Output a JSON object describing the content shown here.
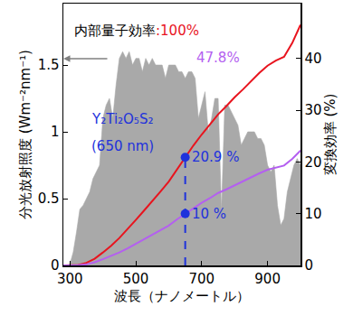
{
  "chart_data": {
    "type": "line",
    "x_label": "波長（ナノメートル）",
    "y_label": "分光放射照度 (Wm⁻²nm⁻¹)",
    "y2_label": "変換効率 (%)",
    "xlim": [
      280,
      1000
    ],
    "xticks": [
      300,
      500,
      700,
      900
    ],
    "ylim": [
      0,
      1.96
    ],
    "yticks": [
      0,
      0.5,
      1,
      1.5
    ],
    "y2lim": [
      0,
      50.6
    ],
    "y2ticks": [
      0,
      10,
      20,
      30,
      40
    ],
    "grid": false,
    "series": [
      {
        "type": "area",
        "color": "#a9a9a9",
        "x": [
          280,
          290,
          300,
          310,
          320,
          330,
          340,
          350,
          360,
          370,
          380,
          390,
          400,
          410,
          420,
          430,
          440,
          450,
          460,
          470,
          480,
          490,
          500,
          510,
          520,
          530,
          540,
          550,
          560,
          570,
          580,
          590,
          600,
          610,
          620,
          630,
          640,
          650,
          660,
          670,
          680,
          690,
          700,
          710,
          720,
          730,
          740,
          750,
          760,
          770,
          780,
          790,
          800,
          810,
          820,
          830,
          840,
          850,
          860,
          870,
          880,
          890,
          900,
          910,
          920,
          930,
          940,
          950,
          960,
          970,
          980,
          990,
          1000
        ],
        "values": [
          0,
          0,
          0.01,
          0.1,
          0.25,
          0.42,
          0.45,
          0.5,
          0.55,
          0.65,
          0.7,
          0.75,
          1.1,
          1.2,
          1.25,
          1.1,
          1.35,
          1.55,
          1.6,
          1.55,
          1.6,
          1.5,
          1.55,
          1.55,
          1.45,
          1.55,
          1.5,
          1.55,
          1.5,
          1.5,
          1.5,
          1.4,
          1.5,
          1.5,
          1.5,
          1.45,
          1.45,
          1.4,
          1.45,
          1.45,
          1.4,
          1.1,
          1.2,
          1.3,
          1.0,
          1.1,
          1.25,
          1.25,
          0.4,
          1.2,
          1.2,
          1.15,
          1.1,
          1.05,
          0.9,
          0.95,
          1.0,
          1.0,
          1.0,
          0.95,
          0.95,
          0.9,
          0.75,
          0.7,
          0.75,
          0.45,
          0.3,
          0.35,
          0.55,
          0.65,
          0.75,
          0.8,
          0.75
        ]
      },
      {
        "type": "line",
        "color": "#e8141e",
        "axis": "y2",
        "x": [
          280,
          300,
          325,
          350,
          375,
          400,
          425,
          450,
          475,
          500,
          525,
          550,
          575,
          600,
          625,
          650,
          675,
          700,
          725,
          750,
          775,
          800,
          825,
          850,
          875,
          900,
          925,
          950,
          975,
          1000
        ],
        "values": [
          0,
          0,
          0.1,
          0.5,
          1.3,
          2.5,
          3.8,
          5.3,
          7.0,
          8.8,
          10.6,
          12.4,
          14.3,
          16.2,
          18.6,
          20.9,
          23.2,
          25.3,
          27.3,
          29.2,
          30.8,
          32.5,
          34.0,
          35.6,
          37.2,
          38.6,
          39.6,
          40.3,
          43.0,
          46.5
        ]
      },
      {
        "type": "line",
        "color": "#b45ff0",
        "axis": "y2",
        "x": [
          280,
          300,
          325,
          350,
          375,
          400,
          425,
          450,
          475,
          500,
          525,
          550,
          575,
          600,
          625,
          650,
          675,
          700,
          725,
          750,
          775,
          800,
          825,
          850,
          875,
          900,
          925,
          950,
          975,
          1000
        ],
        "values": [
          0,
          0,
          0.05,
          0.2,
          0.6,
          1.2,
          1.8,
          2.5,
          3.3,
          4.2,
          5.1,
          5.9,
          6.8,
          7.7,
          8.9,
          10,
          11.1,
          12.1,
          13.0,
          14.0,
          14.7,
          15.5,
          16.3,
          17.0,
          17.8,
          18.5,
          18.9,
          19.3,
          20.6,
          22.2
        ]
      },
      {
        "type": "line",
        "color": "#1e32dc",
        "axis": "y2",
        "line_style": "dashed",
        "x": [
          650,
          650
        ],
        "values": [
          0,
          20.9
        ]
      },
      {
        "type": "scatter",
        "color": "#1e32dc",
        "axis": "y2",
        "marker": "circle",
        "x": [
          650,
          650
        ],
        "values": [
          20.9,
          10
        ]
      }
    ],
    "annotations": [
      {
        "x": 307,
        "y": 45.4,
        "axis": "y2",
        "parts": [
          {
            "text": "内部量子効率",
            "color": "#000000"
          },
          {
            "text": ":100%",
            "color": "#e8141e"
          }
        ]
      },
      {
        "x": 678,
        "y": 40.2,
        "axis": "y2",
        "parts": [
          {
            "text": "47.8%",
            "color": "#b45ff0"
          }
        ]
      },
      {
        "x": 360,
        "y": 28.3,
        "axis": "y2",
        "parts": [
          {
            "text": "Y₂Ti₂O₅S₂",
            "color": "#1e32dc"
          }
        ]
      },
      {
        "x": 360,
        "y": 23.1,
        "axis": "y2",
        "parts": [
          {
            "text": "(650 nm)",
            "color": "#1e32dc"
          }
        ]
      },
      {
        "x": 665,
        "y": 20.9,
        "axis": "y2",
        "parts": [
          {
            "text": "20.9 %",
            "color": "#1e32dc"
          }
        ]
      },
      {
        "x": 665,
        "y": 10,
        "axis": "y2",
        "parts": [
          {
            "text": "10 %",
            "color": "#1e32dc"
          }
        ]
      }
    ]
  }
}
